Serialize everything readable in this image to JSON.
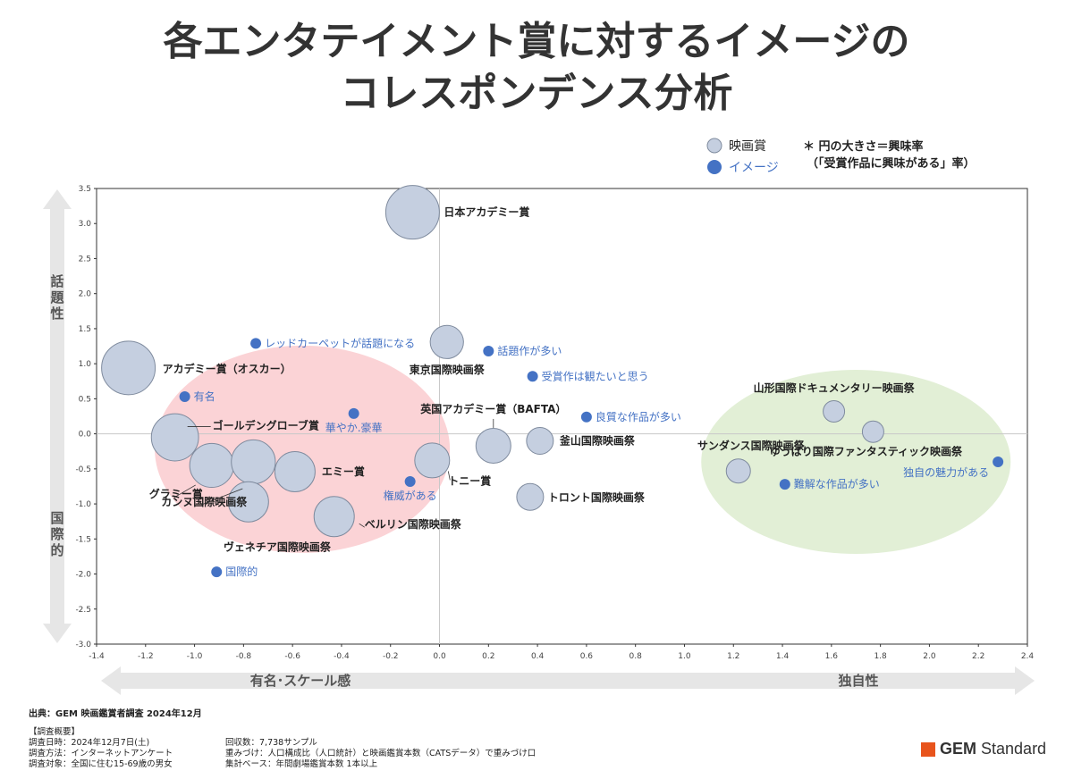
{
  "title_line1": "各エンタテイメント賞に対するイメージの",
  "title_line2": "コレスポンデンス分析",
  "legend": {
    "prize": "映画賞",
    "image": "イメージ",
    "note1": "＊ 円の大きさ＝興味率",
    "note2": "（「受賞作品に興味がある」率）"
  },
  "colors": {
    "prize_fill": "#c5cfe0",
    "prize_stroke": "#7f8b9e",
    "image_dot": "#4472c4",
    "left_ellipse": "#fbd3d6",
    "right_ellipse": "#e2efd6",
    "arrow": "#e6e6e6"
  },
  "axis_words": {
    "y_top": "話題性",
    "y_bottom": "国際的",
    "x_left": "有名･スケール感",
    "x_right": "独自性"
  },
  "chart_data": {
    "type": "scatter",
    "xlim": [
      -1.4,
      2.4
    ],
    "ylim": [
      -3.0,
      3.5
    ],
    "x_ticks": [
      "-1.4",
      "-1.2",
      "-1.0",
      "-0.8",
      "-0.6",
      "-0.4",
      "-0.2",
      "0.0",
      "0.2",
      "0.4",
      "0.6",
      "0.8",
      "1.0",
      "1.2",
      "1.4",
      "1.6",
      "1.8",
      "2.0",
      "2.2",
      "2.4"
    ],
    "y_ticks": [
      "3.5",
      "3.0",
      "2.5",
      "2.0",
      "1.5",
      "1.0",
      "0.5",
      "0.0",
      "-0.5",
      "-1.0",
      "-1.5",
      "-2.0",
      "-2.5",
      "-3.0"
    ],
    "prizes": [
      {
        "name": "日本アカデミー賞",
        "x": -0.11,
        "y": 3.16,
        "size": 1.0
      },
      {
        "name": "アカデミー賞（オスカー）",
        "x": -1.27,
        "y": 0.94,
        "size": 1.0
      },
      {
        "name": "東京国際映画祭",
        "x": 0.03,
        "y": 1.31,
        "size": 0.62
      },
      {
        "name": "ゴールデングローブ賞",
        "x": -1.08,
        "y": -0.05,
        "size": 0.88
      },
      {
        "name": "グラミー賞",
        "x": -0.93,
        "y": -0.45,
        "size": 0.82
      },
      {
        "name": "カンヌ国際映画祭",
        "x": -0.76,
        "y": -0.4,
        "size": 0.82
      },
      {
        "name": "エミー賞",
        "x": -0.59,
        "y": -0.54,
        "size": 0.75
      },
      {
        "name": "ヴェネチア国際映画祭",
        "x": -0.78,
        "y": -0.97,
        "size": 0.75
      },
      {
        "name": "ベルリン国際映画祭",
        "x": -0.43,
        "y": -1.18,
        "size": 0.75
      },
      {
        "name": "トニー賞",
        "x": -0.03,
        "y": -0.38,
        "size": 0.65
      },
      {
        "name": "英国アカデミー賞（BAFTA）",
        "x": 0.22,
        "y": -0.17,
        "size": 0.65
      },
      {
        "name": "釜山国際映画祭",
        "x": 0.41,
        "y": -0.1,
        "size": 0.5
      },
      {
        "name": "トロント国際映画祭",
        "x": 0.37,
        "y": -0.9,
        "size": 0.5
      },
      {
        "name": "山形国際ドキュメンタリー映画祭",
        "x": 1.61,
        "y": 0.32,
        "size": 0.4
      },
      {
        "name": "ゆうばり国際ファンタスティック映画祭",
        "x": 1.77,
        "y": 0.03,
        "size": 0.4
      },
      {
        "name": "サンダンス国際映画祭",
        "x": 1.22,
        "y": -0.53,
        "size": 0.45
      }
    ],
    "images": [
      {
        "name": "レッドカーペットが話題になる",
        "x": -0.75,
        "y": 1.29
      },
      {
        "name": "話題作が多い",
        "x": 0.2,
        "y": 1.18
      },
      {
        "name": "受賞作は観たいと思う",
        "x": 0.38,
        "y": 0.82
      },
      {
        "name": "有名",
        "x": -1.04,
        "y": 0.53
      },
      {
        "name": "華やか.豪華",
        "x": -0.35,
        "y": 0.29
      },
      {
        "name": "良質な作品が多い",
        "x": 0.6,
        "y": 0.24
      },
      {
        "name": "権威がある",
        "x": -0.12,
        "y": -0.68
      },
      {
        "name": "国際的",
        "x": -0.91,
        "y": -1.97
      },
      {
        "name": "独自の魅力がある",
        "x": 2.28,
        "y": -0.4
      },
      {
        "name": "難解な作品が多い",
        "x": 1.41,
        "y": -0.72
      }
    ]
  },
  "footer": {
    "source": "出典：GEM 映画鑑賞者調査 2024年12月",
    "overview_title": "【調査概要】",
    "col1": [
      "調査日時：2024年12月7日(土)",
      "調査方法：インターネットアンケート",
      "調査対象：全国に住む15-69歳の男女"
    ],
    "col2": [
      "回収数：7,738サンプル",
      "重みづけ：人口構成比（人口統計）と映画鑑賞本数（CATSデータ）で重みづけ口",
      "集計ベース：年間劇場鑑賞本数 1本以上"
    ],
    "brand_bold": "GEM",
    "brand_rest": " Standard"
  }
}
